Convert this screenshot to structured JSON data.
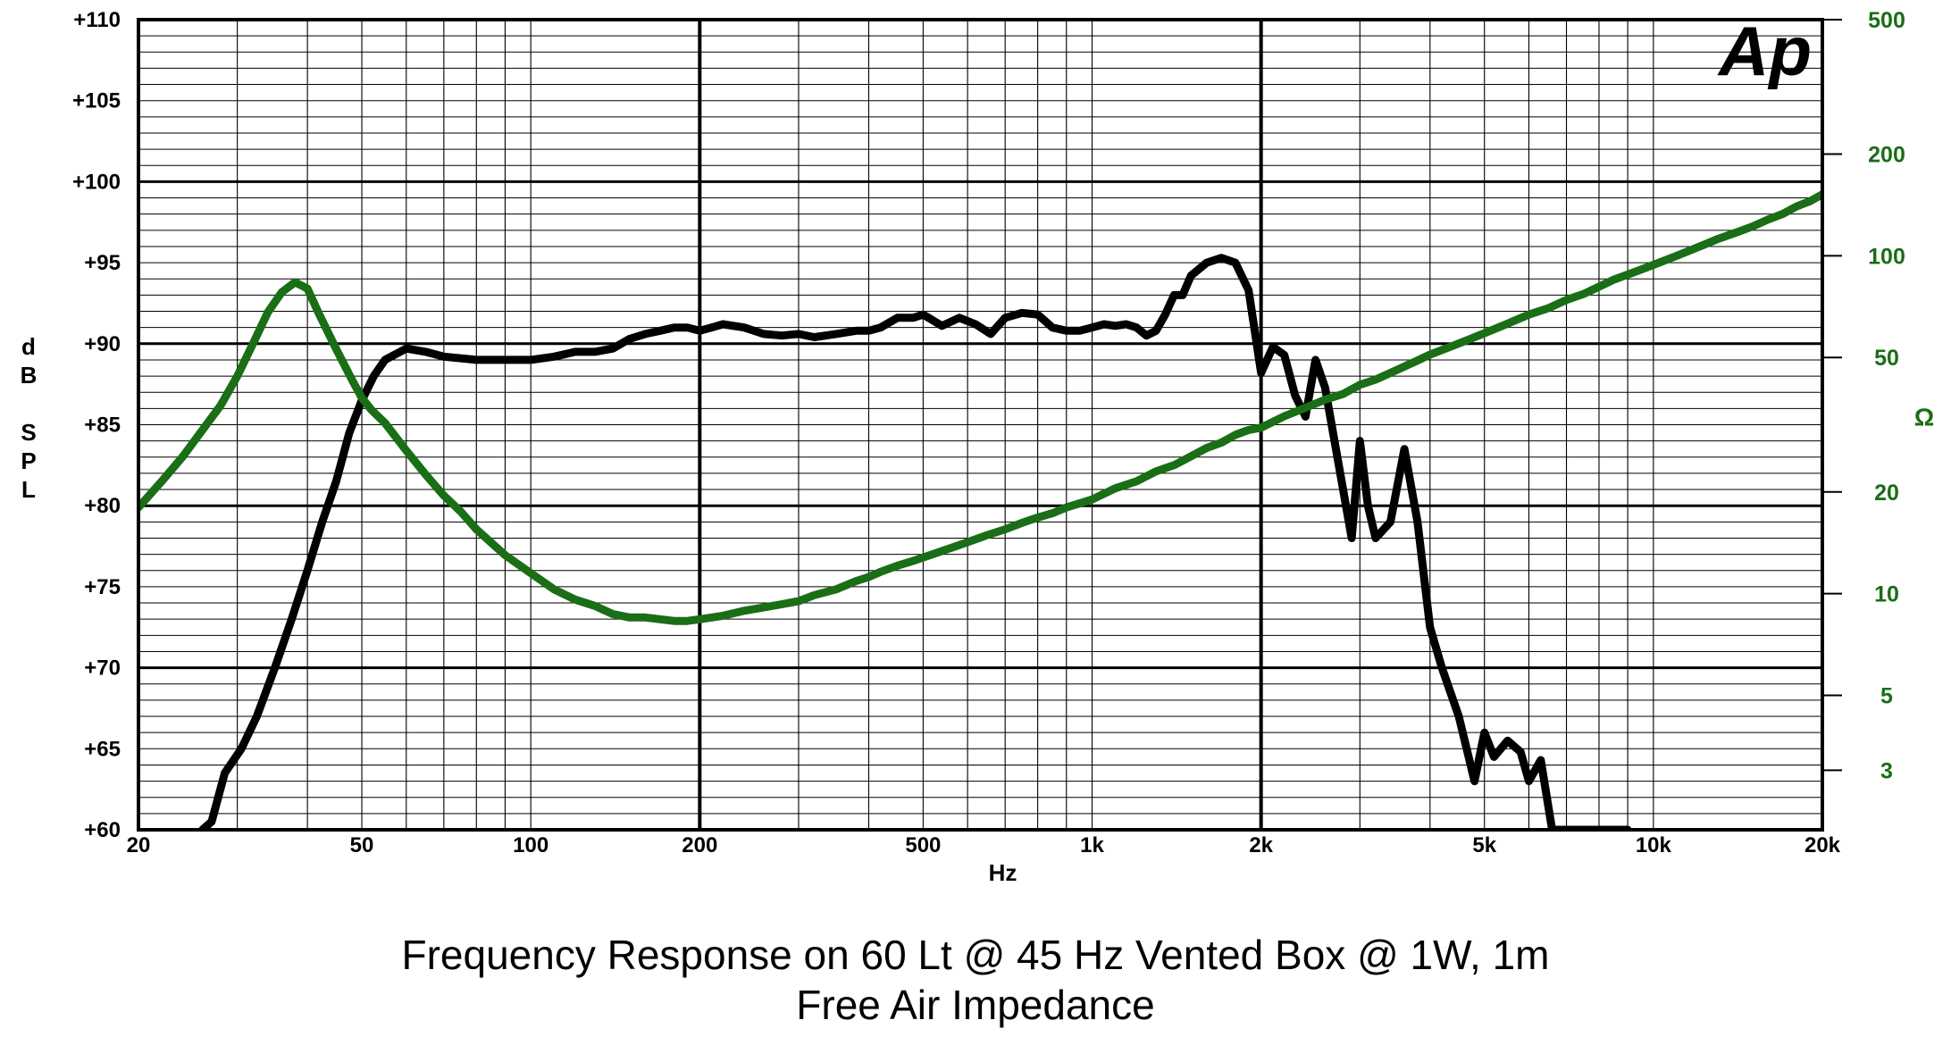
{
  "chart_data": {
    "type": "line",
    "title": "Frequency Response on 60 Lt @ 45 Hz Vented Box @ 1W, 1m",
    "subtitle": "Free Air Impedance",
    "logo": "Ap",
    "xlabel": "Hz",
    "ylabel": "dB SPL",
    "ylabel_right": "Ω",
    "x_scale": "log",
    "xlim": [
      20,
      20000
    ],
    "ylim": [
      60,
      110
    ],
    "ylim_right": [
      2,
      500
    ],
    "y_right_scale": "log",
    "grid": true,
    "x_ticks": [
      20,
      50,
      100,
      200,
      500,
      1000,
      2000,
      5000,
      10000,
      20000
    ],
    "x_tick_labels": [
      "20",
      "50",
      "100",
      "200",
      "500",
      "1k",
      "2k",
      "5k",
      "10k",
      "20k"
    ],
    "y_ticks": [
      60,
      65,
      70,
      75,
      80,
      85,
      90,
      95,
      100,
      105,
      110
    ],
    "y_tick_labels": [
      "+60",
      "+65",
      "+70",
      "+75",
      "+80",
      "+85",
      "+90",
      "+95",
      "+100",
      "+105",
      "+110"
    ],
    "y_right_ticks": [
      3,
      5,
      10,
      20,
      50,
      100,
      200,
      500
    ],
    "y_right_tick_labels": [
      "3",
      "5",
      "10",
      "20",
      "50",
      "100",
      "200",
      "500"
    ],
    "series": [
      {
        "color": "#000000",
        "axis": "left",
        "x": [
          26,
          27,
          28.5,
          30.5,
          32.5,
          35,
          37.5,
          40,
          42.5,
          45,
          47.5,
          50,
          52.5,
          55,
          60,
          65,
          70,
          80,
          90,
          100,
          110,
          120,
          130,
          140,
          150,
          160,
          170,
          180,
          190,
          200,
          210,
          220,
          240,
          260,
          280,
          300,
          320,
          350,
          380,
          400,
          420,
          450,
          480,
          500,
          540,
          580,
          620,
          660,
          700,
          750,
          800,
          850,
          900,
          950,
          1000,
          1050,
          1100,
          1150,
          1200,
          1250,
          1300,
          1350,
          1400,
          1450,
          1500,
          1600,
          1700,
          1800,
          1900,
          2000,
          2100,
          2200,
          2300,
          2400,
          2500,
          2600,
          2800,
          2900,
          3000,
          3100,
          3200,
          3400,
          3600,
          3800,
          4000,
          4200,
          4500,
          4800,
          5000,
          5200,
          5500,
          5800,
          6000,
          6300,
          6600,
          7000,
          7500,
          8000,
          8500,
          9000
        ],
        "y": [
          60,
          60.5,
          63.5,
          65,
          67,
          70,
          73,
          76,
          79,
          81.5,
          84.5,
          86.5,
          88,
          89,
          89.7,
          89.5,
          89.2,
          89.0,
          89.0,
          89.0,
          89.2,
          89.5,
          89.5,
          89.7,
          90.3,
          90.6,
          90.8,
          91.0,
          91.0,
          90.8,
          91.0,
          91.2,
          91.0,
          90.6,
          90.5,
          90.6,
          90.4,
          90.6,
          90.8,
          90.8,
          91.0,
          91.6,
          91.6,
          91.8,
          91.1,
          91.6,
          91.2,
          90.6,
          91.6,
          91.9,
          91.8,
          91.0,
          90.8,
          90.8,
          91.0,
          91.2,
          91.1,
          91.2,
          91.0,
          90.5,
          90.8,
          91.8,
          93.0,
          93.0,
          94.2,
          95.0,
          95.3,
          95.0,
          93.3,
          88.2,
          89.8,
          89.3,
          86.8,
          85.5,
          89.0,
          87.3,
          81.0,
          78.0,
          84.0,
          80.0,
          78.0,
          79.0,
          83.5,
          79.0,
          72.5,
          70.0,
          67.0,
          63.0,
          66.0,
          64.5,
          65.5,
          64.8,
          63.0,
          64.3,
          60.0,
          60,
          60,
          60,
          60,
          60
        ]
      },
      {
        "color": "#1a6e16",
        "axis": "right",
        "x": [
          20,
          22,
          24,
          26,
          28,
          30,
          32,
          34,
          36,
          38,
          40,
          42,
          45,
          48,
          50,
          52,
          55,
          60,
          65,
          70,
          75,
          80,
          90,
          100,
          110,
          120,
          130,
          140,
          150,
          160,
          170,
          180,
          190,
          200,
          220,
          240,
          260,
          280,
          300,
          320,
          350,
          380,
          400,
          420,
          450,
          480,
          500,
          550,
          600,
          650,
          700,
          750,
          800,
          850,
          900,
          950,
          1000,
          1100,
          1200,
          1300,
          1400,
          1500,
          1600,
          1700,
          1800,
          1900,
          2000,
          2200,
          2400,
          2600,
          2800,
          3000,
          3200,
          3500,
          3800,
          4000,
          4500,
          5000,
          5500,
          6000,
          6500,
          7000,
          7500,
          8000,
          8500,
          9000,
          9500,
          10000,
          11000,
          12000,
          13000,
          14000,
          15000,
          16000,
          17000,
          18000,
          19000,
          20000
        ],
        "y": [
          18.0,
          21.5,
          25.5,
          30.5,
          36,
          44,
          55,
          68,
          78,
          83.5,
          80,
          67,
          53,
          43,
          38,
          35,
          32,
          26.5,
          22.5,
          19.5,
          17.5,
          15.5,
          13.0,
          11.5,
          10.3,
          9.6,
          9.2,
          8.7,
          8.5,
          8.5,
          8.4,
          8.3,
          8.3,
          8.4,
          8.6,
          8.9,
          9.1,
          9.3,
          9.5,
          9.9,
          10.3,
          10.9,
          11.2,
          11.6,
          12.1,
          12.5,
          12.8,
          13.5,
          14.2,
          14.9,
          15.5,
          16.2,
          16.8,
          17.3,
          18.0,
          18.5,
          19.0,
          20.5,
          21.5,
          23.0,
          24.0,
          25.5,
          27.0,
          28.0,
          29.5,
          30.5,
          31.0,
          33.5,
          35.5,
          37.5,
          39.0,
          41.5,
          43.0,
          46.0,
          49.0,
          51.0,
          55.0,
          59.0,
          63.0,
          67.0,
          70.0,
          74.0,
          77.0,
          81.0,
          85.0,
          88.0,
          91.0,
          94.0,
          100.0,
          106.0,
          112.0,
          117.0,
          122.0,
          128.0,
          133.0,
          140.0,
          145.0,
          152.0
        ]
      }
    ]
  }
}
